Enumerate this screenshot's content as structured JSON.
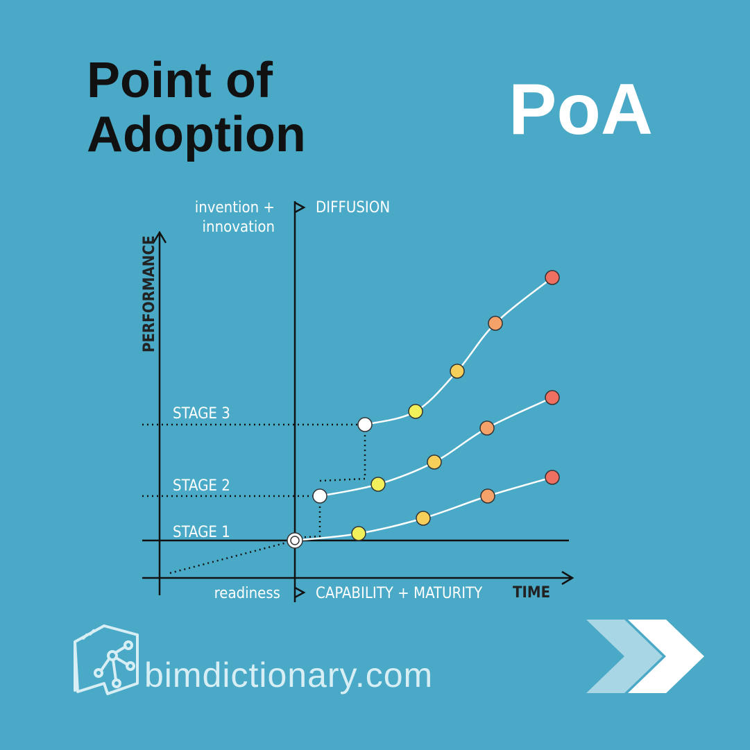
{
  "header": {
    "title_lines": [
      "Point of",
      "Adoption"
    ],
    "abbreviation": "PoA"
  },
  "diagram": {
    "top_left_lines": [
      "invention +",
      "innovation"
    ],
    "top_right": "DIFFUSION",
    "y_axis": "PERFORMANCE",
    "stages": [
      "STAGE 3",
      "STAGE 2",
      "STAGE 1"
    ],
    "bottom_left": "readiness",
    "bottom_right": "CAPABILITY + MATURITY",
    "x_axis": "TIME"
  },
  "footer": {
    "site": "bimdictionary.com"
  }
}
